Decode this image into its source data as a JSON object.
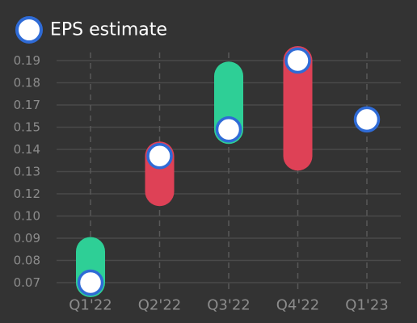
{
  "chart_data": {
    "type": "bar",
    "title": "",
    "xlabel": "",
    "ylabel": "",
    "categories": [
      "Q1'22",
      "Q2'22",
      "Q3'22",
      "Q4'22",
      "Q1'23"
    ],
    "y_ticks": [
      "0.07",
      "0.08",
      "0.09",
      "0.10",
      "0.12",
      "0.13",
      "0.14",
      "0.15",
      "0.17",
      "0.18",
      "0.19"
    ],
    "ylim": [
      0.07,
      0.19
    ],
    "grid": true,
    "legend_position": "top-left",
    "series": [
      {
        "name": "EPS estimate",
        "kind": "marker",
        "values": [
          0.07,
          0.137,
          0.149,
          0.19,
          0.157
        ]
      },
      {
        "kind": "range",
        "low": [
          0.07,
          0.121,
          0.149,
          0.137,
          null
        ],
        "high": [
          0.084,
          0.137,
          0.183,
          0.19,
          null
        ],
        "status": [
          "beat",
          "miss",
          "beat",
          "miss",
          null
        ]
      }
    ],
    "colors": {
      "beat": "#2ecf96",
      "miss": "#de4156",
      "marker_fill": "#ffffff",
      "marker_stroke": "#2f6bd6",
      "background": "#333333"
    }
  }
}
